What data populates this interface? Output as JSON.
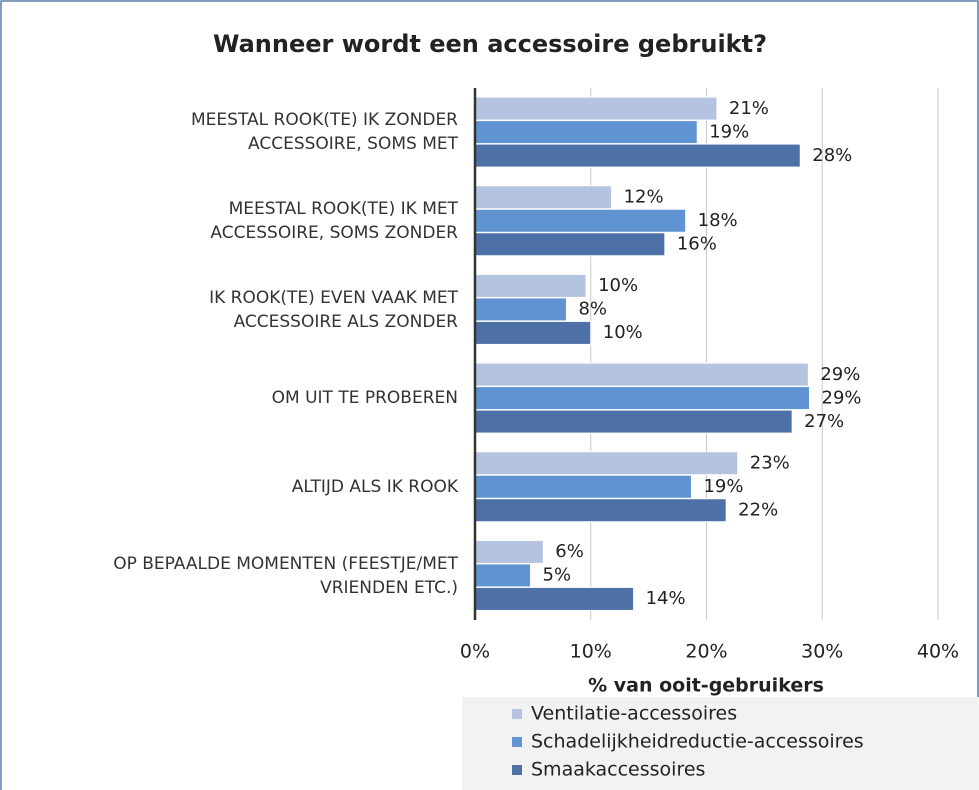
{
  "chart_data": {
    "type": "hbar",
    "title": "Wanneer wordt een accessoire gebruikt?",
    "xlabel": "% van ooit-gebruikers",
    "categories": [
      "MEESTAL ROOK(TE) IK ZONDER\nACCESSOIRE, SOMS MET",
      "MEESTAL ROOK(TE) IK MET\nACCESSOIRE, SOMS ZONDER",
      "IK ROOK(TE) EVEN VAAK MET\nACCESSOIRE ALS ZONDER",
      "OM UIT TE PROBEREN",
      "ALTIJD ALS IK ROOK",
      "OP BEPAALDE MOMENTEN (FEESTJE/MET\nVRIENDEN ETC.)"
    ],
    "series": [
      {
        "name": "Ventilatie-accessoires",
        "color": "#b4c3e0",
        "values": [
          20.9,
          11.8,
          9.6,
          28.8,
          22.7,
          5.9
        ],
        "value_labels": [
          "21%",
          "12%",
          "10%",
          "29%",
          "23%",
          "6%"
        ]
      },
      {
        "name": "Schadelijkheidreductie-accessoires",
        "color": "#5f93d1",
        "values": [
          19.2,
          18.2,
          7.9,
          28.9,
          18.7,
          4.8
        ],
        "value_labels": [
          "19%",
          "18%",
          "8%",
          "29%",
          "19%",
          "5%"
        ]
      },
      {
        "name": "Smaakaccessoires",
        "color": "#4d71a6",
        "values": [
          28.1,
          16.4,
          10.0,
          27.4,
          21.7,
          13.7
        ],
        "value_labels": [
          "28%",
          "16%",
          "10%",
          "27%",
          "22%",
          "14%"
        ]
      }
    ],
    "xlim": [
      0,
      40
    ],
    "xticks": [
      {
        "value": 0,
        "label": "0%"
      },
      {
        "value": 10,
        "label": "10%"
      },
      {
        "value": 20,
        "label": "20%"
      },
      {
        "value": 30,
        "label": "30%"
      },
      {
        "value": 40,
        "label": "40%"
      }
    ],
    "grid": true,
    "legend": "bottom-right"
  }
}
